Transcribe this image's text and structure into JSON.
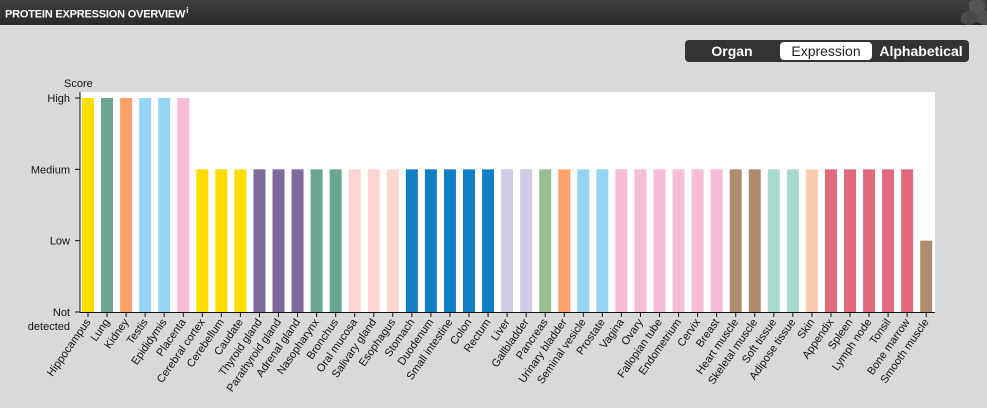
{
  "header": {
    "title": "PROTEIN EXPRESSION OVERVIEW",
    "info": "i"
  },
  "toggle": {
    "options": [
      "Organ",
      "Expression",
      "Alphabetical"
    ],
    "selected": "Expression"
  },
  "chart_data": {
    "type": "bar",
    "ylabel": "Score",
    "y_levels": [
      "Not detected",
      "Low",
      "Medium",
      "High"
    ],
    "ylim": [
      0,
      3
    ],
    "categories": [
      "Hippocampus",
      "Lung",
      "Kidney",
      "Testis",
      "Epididymis",
      "Placenta",
      "Cerebral cortex",
      "Cerebellum",
      "Caudate",
      "Thyroid gland",
      "Parathyroid gland",
      "Adrenal gland",
      "Nasopharynx",
      "Bronchus",
      "Oral mucosa",
      "Salivary gland",
      "Esophagus",
      "Stomach",
      "Duodenum",
      "Small intestine",
      "Colon",
      "Rectum",
      "Liver",
      "Gallbladder",
      "Pancreas",
      "Urinary bladder",
      "Seminal vesicle",
      "Prostate",
      "Vagina",
      "Ovary",
      "Fallopian tube",
      "Endometrium",
      "Cervix",
      "Breast",
      "Heart muscle",
      "Skeletal muscle",
      "Soft tissue",
      "Adipose tissue",
      "Skin",
      "Appendix",
      "Spleen",
      "Lymph node",
      "Tonsil",
      "Bone marrow",
      "Smooth muscle"
    ],
    "values": [
      3,
      3,
      3,
      3,
      3,
      3,
      2,
      2,
      2,
      2,
      2,
      2,
      2,
      2,
      2,
      2,
      2,
      2,
      2,
      2,
      2,
      2,
      2,
      2,
      2,
      2,
      2,
      2,
      2,
      2,
      2,
      2,
      2,
      2,
      2,
      2,
      2,
      2,
      2,
      2,
      2,
      2,
      2,
      2,
      1
    ],
    "colors": [
      "#ffdd00",
      "#6aa692",
      "#ffa06b",
      "#95d4f3",
      "#95d4f3",
      "#f7bcd7",
      "#ffdd00",
      "#ffdd00",
      "#ffdd00",
      "#7f6a9c",
      "#7f6a9c",
      "#7f6a9c",
      "#6aa692",
      "#6aa692",
      "#fcd6d3",
      "#fcd6d3",
      "#fcd6d3",
      "#1280c4",
      "#1280c4",
      "#1280c4",
      "#1280c4",
      "#1280c4",
      "#d1cbe5",
      "#d1cbe5",
      "#96c08e",
      "#ffa06b",
      "#95d4f3",
      "#95d4f3",
      "#f7bcd7",
      "#f7bcd7",
      "#f7bcd7",
      "#f7bcd7",
      "#f7bcd7",
      "#f7bcd7",
      "#b08c6f",
      "#b08c6f",
      "#a7dacd",
      "#a7dacd",
      "#fbcab1",
      "#e16b7c",
      "#e16b7c",
      "#e16b7c",
      "#e16b7c",
      "#e16b7c",
      "#b08c6f"
    ],
    "grid": false
  }
}
